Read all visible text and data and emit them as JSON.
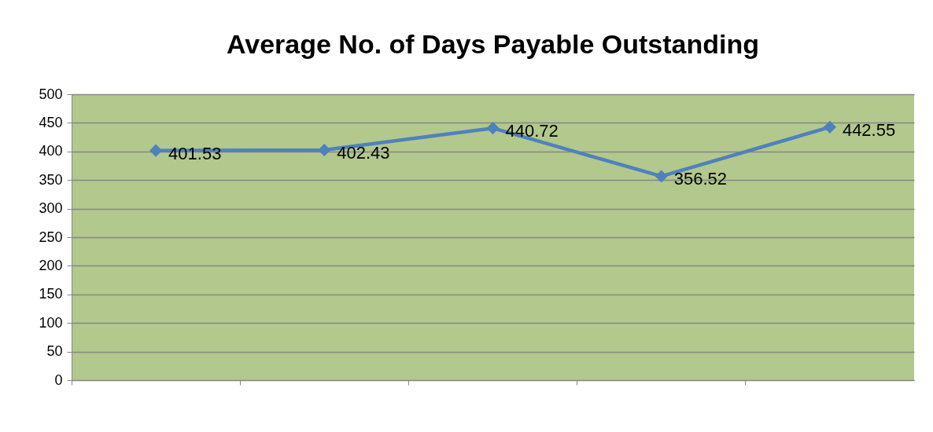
{
  "chart_data": {
    "type": "line",
    "title": "Average No. of Days Payable Outstanding",
    "categories": [
      null,
      null,
      null,
      null,
      null
    ],
    "series": [
      {
        "color": "#4f81bd",
        "values": [
          401.53,
          402.43,
          440.72,
          356.52,
          442.55
        ]
      }
    ],
    "ylim": [
      0,
      500
    ],
    "yticks": [
      0,
      50,
      100,
      150,
      200,
      250,
      300,
      350,
      400,
      450,
      500
    ],
    "grid": "y",
    "marker": "diamond",
    "line_style": "solid",
    "data_labels": true,
    "tick_labels": "y"
  }
}
